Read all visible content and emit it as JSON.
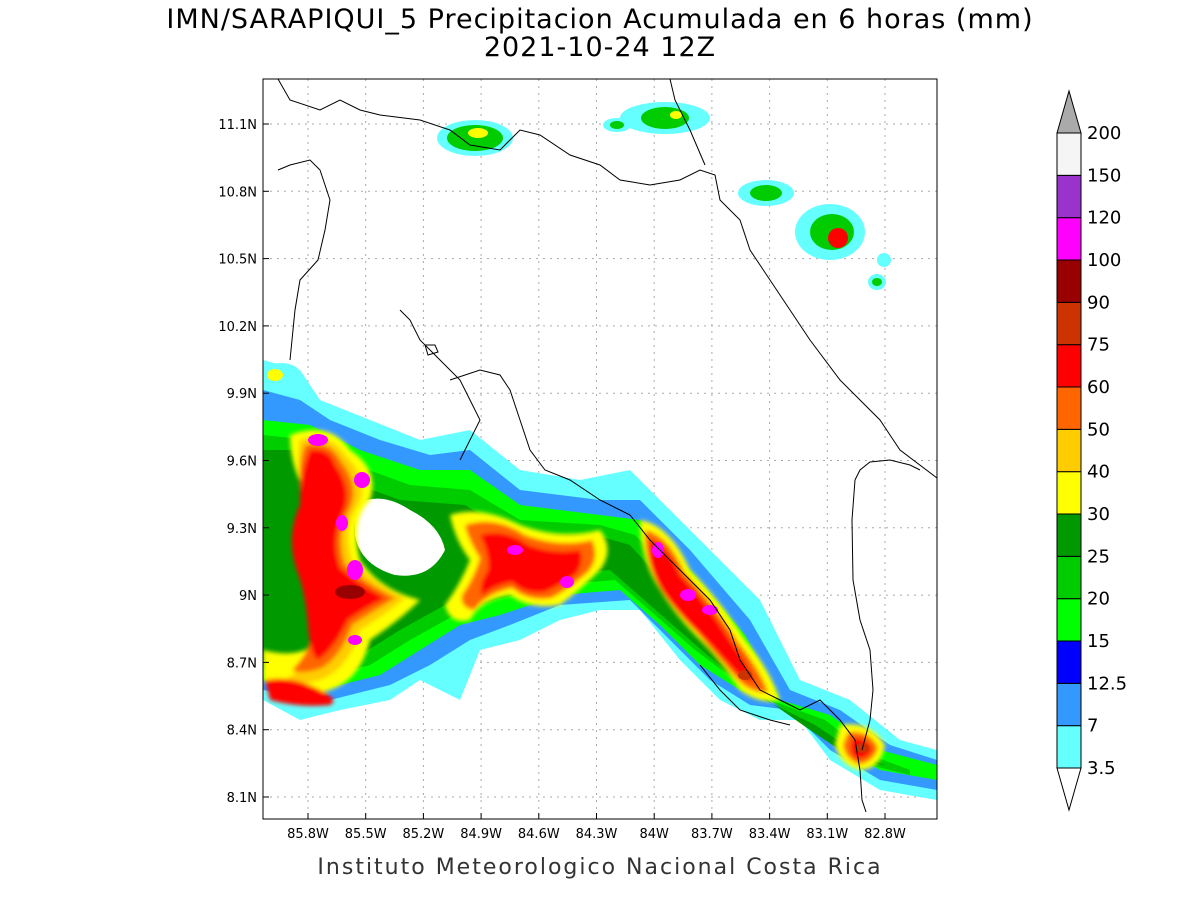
{
  "title": "IMN/SARAPIQUI_5 Precipitacion Acumulada en 6 horas (mm)",
  "subtitle": "2021-10-24 12Z",
  "footer": "Instituto Meteorologico Nacional Costa Rica",
  "axes": {
    "lat_ticks": [
      "11.1N",
      "10.8N",
      "10.5N",
      "10.2N",
      "9.9N",
      "9.6N",
      "9.3N",
      "9N",
      "8.7N",
      "8.4N",
      "8.1N"
    ],
    "lon_ticks": [
      "85.8W",
      "85.5W",
      "85.2W",
      "84.9W",
      "84.6W",
      "84.3W",
      "84W",
      "83.7W",
      "83.4W",
      "83.1W",
      "82.8W"
    ]
  },
  "legend": {
    "labels": [
      "3.5",
      "7",
      "12.5",
      "15",
      "20",
      "25",
      "30",
      "40",
      "50",
      "60",
      "75",
      "90",
      "100",
      "120",
      "150",
      "200"
    ],
    "colors": [
      "#66ffff",
      "#3399ff",
      "#0000ff",
      "#00ff00",
      "#00cc00",
      "#009900",
      "#ffff00",
      "#ffcc00",
      "#ff6600",
      "#ff0000",
      "#cc3300",
      "#990000",
      "#ff00ff",
      "#9933cc",
      "#f5f5f5"
    ]
  }
}
